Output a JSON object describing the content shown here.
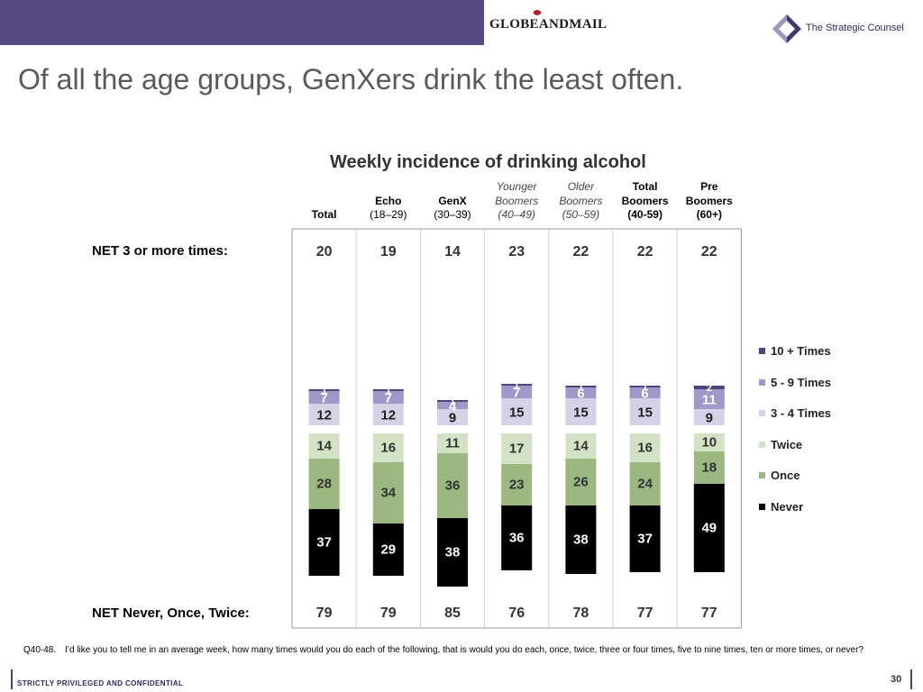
{
  "header": {
    "globe_logo": "GLOBEANDMAIL",
    "sc_logo": "The Strategic Counsel"
  },
  "title": "Of all the age groups, GenXers drink the least often.",
  "chart_data": {
    "type": "bar",
    "stacked": true,
    "title": "Weekly incidence of drinking alcohol",
    "categories": [
      {
        "lines": [
          "",
          "",
          "Total"
        ],
        "style": [
          "",
          "",
          "b"
        ]
      },
      {
        "lines": [
          "",
          "Echo",
          "(18–29)"
        ],
        "style": [
          "",
          "b",
          ""
        ]
      },
      {
        "lines": [
          "",
          "GenX",
          "(30–39)"
        ],
        "style": [
          "",
          "b",
          ""
        ]
      },
      {
        "lines": [
          "Younger",
          "Boomers",
          "(40–49)"
        ],
        "style": [
          "it",
          "it",
          "it"
        ]
      },
      {
        "lines": [
          "Older",
          "Boomers",
          "(50–59)"
        ],
        "style": [
          "it",
          "it",
          "it"
        ]
      },
      {
        "lines": [
          "Total",
          "Boomers",
          "(40-59)"
        ],
        "style": [
          "b",
          "b",
          "b"
        ]
      },
      {
        "lines": [
          "Pre",
          "Boomers",
          "(60+)"
        ],
        "style": [
          "b",
          "b",
          "b"
        ]
      }
    ],
    "upper_series": [
      {
        "name": "3 - 4 Times",
        "color": "#d5d2e8",
        "values": [
          12,
          12,
          9,
          15,
          15,
          15,
          9
        ]
      },
      {
        "name": "5 - 9 Times",
        "color": "#9f98c8",
        "values": [
          7,
          7,
          4,
          7,
          6,
          6,
          11
        ]
      },
      {
        "name": "10 + Times",
        "color": "#4d4479",
        "values": [
          1,
          1,
          1,
          1,
          1,
          1,
          2
        ]
      }
    ],
    "lower_series": [
      {
        "name": "Never",
        "color": "#000000",
        "values": [
          37,
          29,
          38,
          36,
          38,
          37,
          49
        ]
      },
      {
        "name": "Once",
        "color": "#9ab880",
        "values": [
          28,
          34,
          36,
          23,
          26,
          24,
          18
        ]
      },
      {
        "name": "Twice",
        "color": "#d3e2c5",
        "values": [
          14,
          16,
          11,
          17,
          14,
          16,
          10
        ]
      }
    ],
    "legend_order": [
      "10 + Times",
      "5 - 9 Times",
      "3 - 4 Times",
      "Twice",
      "Once",
      "Never"
    ],
    "net_top": {
      "label": "NET 3 or more times:",
      "values": [
        20,
        19,
        14,
        23,
        22,
        22,
        22
      ]
    },
    "net_bottom": {
      "label": "NET Never, Once, Twice:",
      "values": [
        79,
        79,
        85,
        76,
        78,
        77,
        77
      ]
    }
  },
  "footnote": {
    "qid": "Q40-48.",
    "text": "I’d like you to tell me in an average week, how many times would you do each of the following, that is would you do each, once, twice, three or four times, five to nine times, ten or more times, or never?"
  },
  "footer": {
    "confidential": "STRICTLY PRIVILEGED AND CONFIDENTIAL",
    "page": "30"
  }
}
